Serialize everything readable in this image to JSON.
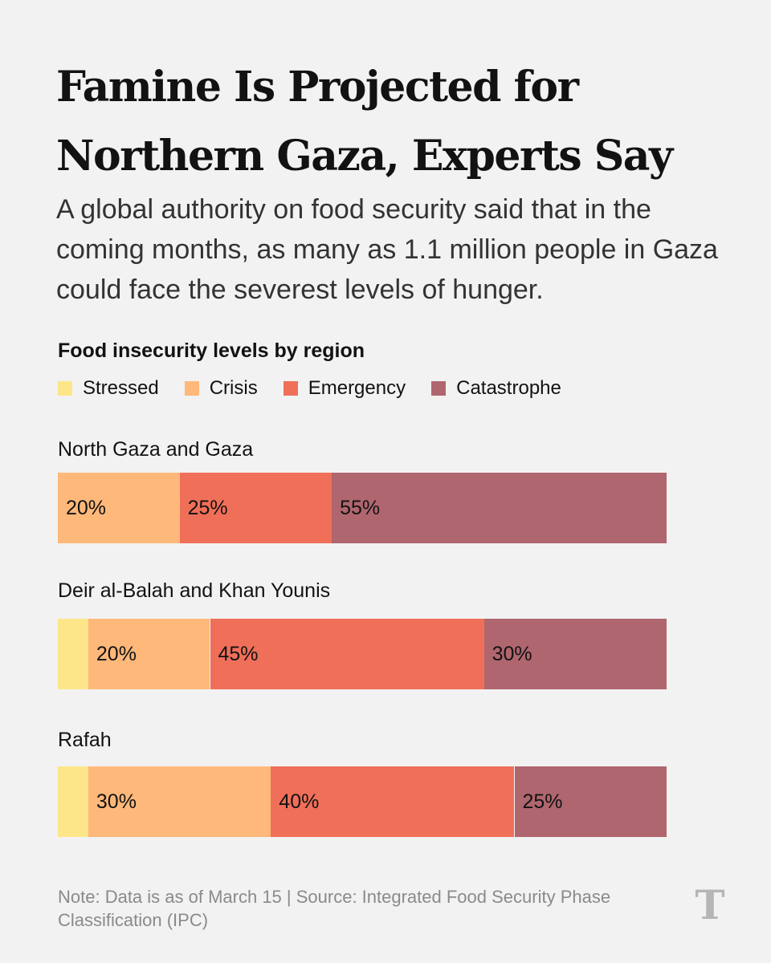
{
  "headline": "Famine Is Projected for Northern Gaza, Experts Say",
  "dek": "A global authority on food security said that in the coming months, as many as 1.1 million people in Gaza could face the severest levels of hunger.",
  "logo_glyph": "T",
  "chart_data": {
    "type": "bar",
    "orientation": "horizontal",
    "stacked": true,
    "title": "Food insecurity levels by region",
    "xlim": [
      0,
      100
    ],
    "legend_position": "top-left",
    "categories": [
      "North Gaza and Gaza",
      "Deir al-Balah and Khan Younis",
      "Rafah"
    ],
    "series": [
      {
        "name": "Stressed",
        "color": "#fde68a",
        "values": [
          0,
          5,
          5
        ],
        "labels": [
          "",
          "",
          ""
        ]
      },
      {
        "name": "Crisis",
        "color": "#feb87a",
        "values": [
          20,
          20,
          30
        ],
        "labels": [
          "20%",
          "20%",
          "30%"
        ]
      },
      {
        "name": "Emergency",
        "color": "#f06f59",
        "values": [
          25,
          45,
          40
        ],
        "labels": [
          "25%",
          "45%",
          "40%"
        ]
      },
      {
        "name": "Catastrophe",
        "color": "#b0666f",
        "values": [
          55,
          30,
          25
        ],
        "labels": [
          "55%",
          "30%",
          "25%"
        ]
      }
    ]
  },
  "footnote": "Note: Data is as of March 15 | Source: Integrated Food Security Phase Classification (IPC)"
}
